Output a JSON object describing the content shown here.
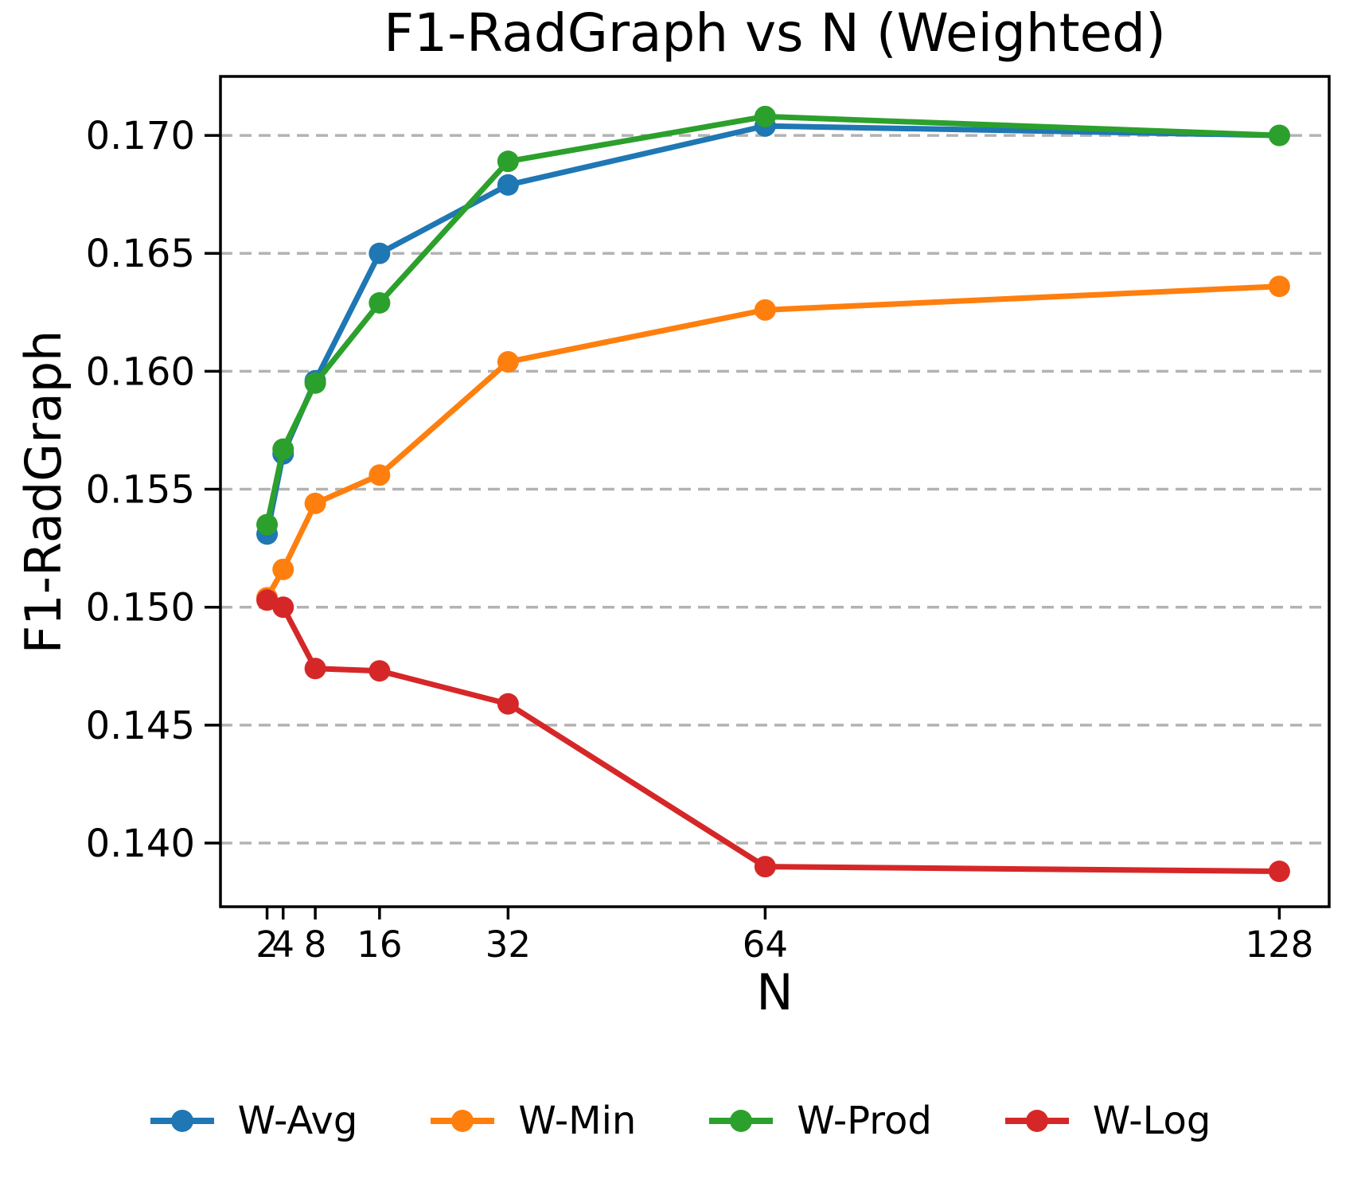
{
  "chart_data": {
    "type": "line",
    "title": "F1-RadGraph vs N (Weighted)",
    "xlabel": "N",
    "ylabel": "F1-RadGraph",
    "x": [
      2,
      4,
      8,
      16,
      32,
      64,
      128
    ],
    "x_ticks": [
      {
        "value": 2,
        "label": "2"
      },
      {
        "value": 4,
        "label": "4"
      },
      {
        "value": 8,
        "label": "8"
      },
      {
        "value": 16,
        "label": "16"
      },
      {
        "value": 32,
        "label": "32"
      },
      {
        "value": 64,
        "label": "64"
      },
      {
        "value": 128,
        "label": "128"
      }
    ],
    "y_ticks": [
      {
        "value": 0.14,
        "label": "0.140"
      },
      {
        "value": 0.145,
        "label": "0.145"
      },
      {
        "value": 0.15,
        "label": "0.150"
      },
      {
        "value": 0.155,
        "label": "0.155"
      },
      {
        "value": 0.16,
        "label": "0.160"
      },
      {
        "value": 0.165,
        "label": "0.165"
      },
      {
        "value": 0.17,
        "label": "0.170"
      }
    ],
    "xlim": [
      -3.8,
      134.2
    ],
    "ylim": [
      0.1373,
      0.1725
    ],
    "x_scale": "linear",
    "grid": "horizontal-dashed",
    "grid_color": "#b3b3b3",
    "axis_color": "#000000",
    "legend_position": "bottom",
    "series": [
      {
        "name": "W-Avg",
        "color": "#1f77b4",
        "marker": "circle",
        "values": [
          0.1531,
          0.1565,
          0.1596,
          0.165,
          0.1679,
          0.1704,
          0.17
        ]
      },
      {
        "name": "W-Min",
        "color": "#ff7f0e",
        "marker": "circle",
        "values": [
          0.1504,
          0.1516,
          0.1544,
          0.1556,
          0.1604,
          0.1626,
          0.1636
        ]
      },
      {
        "name": "W-Prod",
        "color": "#2ca02c",
        "marker": "circle",
        "values": [
          0.1535,
          0.1567,
          0.1595,
          0.1629,
          0.1689,
          0.1708,
          0.17
        ]
      },
      {
        "name": "W-Log",
        "color": "#d62728",
        "marker": "circle",
        "values": [
          0.1503,
          0.15,
          0.1474,
          0.1473,
          0.1459,
          0.139,
          0.1388
        ]
      }
    ]
  }
}
